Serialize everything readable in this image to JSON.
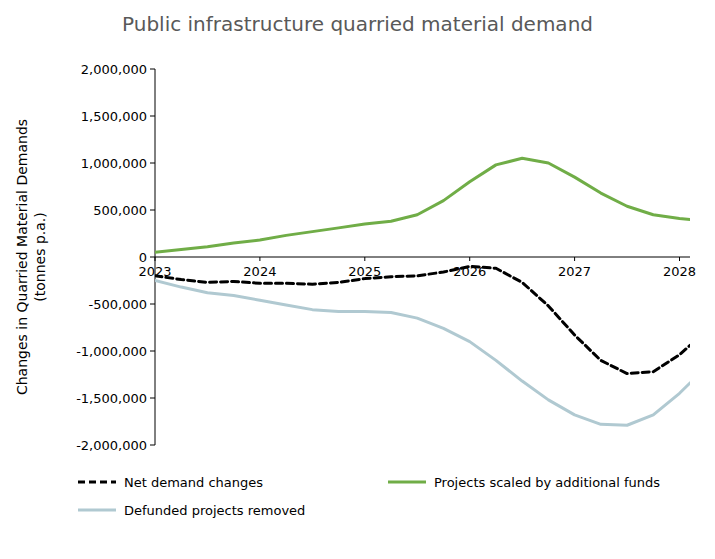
{
  "chart_data": {
    "type": "line",
    "title": "Public infrastructure quarried material demand",
    "y_label": "Changes in Quarried Material Demands\n(tonnes p.a.)",
    "x": [
      2023,
      2023.25,
      2023.5,
      2023.75,
      2024,
      2024.25,
      2024.5,
      2024.75,
      2025,
      2025.25,
      2025.5,
      2025.75,
      2026,
      2026.25,
      2026.5,
      2026.75,
      2027,
      2027.25,
      2027.5,
      2027.75,
      2028,
      2028.1
    ],
    "xlim": [
      2023,
      2028.1
    ],
    "xticks": [
      2023,
      2024,
      2025,
      2026,
      2027,
      2028
    ],
    "ylim": [
      -2000000,
      2000000
    ],
    "yticks": [
      {
        "value": -2000000,
        "label": "-2,000,000"
      },
      {
        "value": -1500000,
        "label": "-1,500,000"
      },
      {
        "value": -1000000,
        "label": "-1,000,000"
      },
      {
        "value": -500000,
        "label": "-500,000"
      },
      0,
      {
        "value": 500000,
        "label": "500,000"
      },
      {
        "value": 1000000,
        "label": "1,000,000"
      },
      {
        "value": 1500000,
        "label": "1,500,000"
      },
      {
        "value": 2000000,
        "label": "2,000,000"
      }
    ],
    "grid": false,
    "legend": "bottom",
    "series": [
      {
        "name": "Net demand changes",
        "color": "#000000",
        "line_style": "dashed",
        "values": [
          -200000,
          -240000,
          -270000,
          -260000,
          -280000,
          -280000,
          -290000,
          -270000,
          -230000,
          -210000,
          -200000,
          -160000,
          -100000,
          -120000,
          -270000,
          -520000,
          -830000,
          -1100000,
          -1240000,
          -1220000,
          -1040000,
          -940000
        ]
      },
      {
        "name": "Projects scaled by additional funds",
        "color": "#70ad47",
        "line_style": "solid",
        "values": [
          50000,
          80000,
          110000,
          150000,
          180000,
          230000,
          270000,
          310000,
          350000,
          380000,
          450000,
          600000,
          800000,
          980000,
          1050000,
          1000000,
          850000,
          680000,
          540000,
          450000,
          410000,
          400000
        ]
      },
      {
        "name": "Defunded projects removed",
        "color": "#b0c9d1",
        "line_style": "solid",
        "values": [
          -250000,
          -320000,
          -380000,
          -410000,
          -460000,
          -510000,
          -560000,
          -580000,
          -580000,
          -590000,
          -650000,
          -760000,
          -900000,
          -1100000,
          -1320000,
          -1520000,
          -1680000,
          -1780000,
          -1790000,
          -1680000,
          -1450000,
          -1340000
        ]
      }
    ]
  }
}
